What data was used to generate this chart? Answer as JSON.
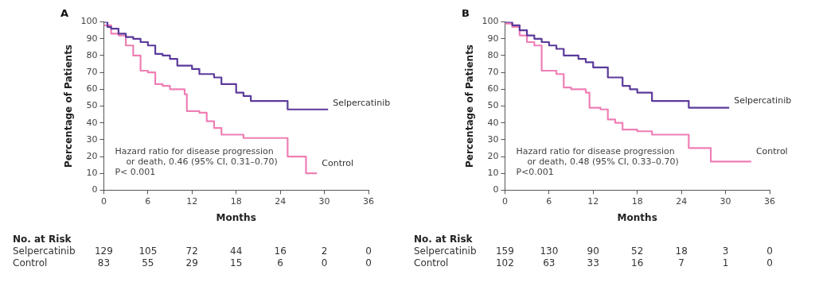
{
  "chart_data": [
    {
      "type": "step",
      "title": "A",
      "xlabel": "Months",
      "ylabel": "Percentage of Patients",
      "xlim": [
        0,
        36
      ],
      "xticks": [
        0,
        6,
        12,
        18,
        24,
        30,
        36
      ],
      "ylim": [
        0,
        100
      ],
      "yticks": [
        0,
        10,
        20,
        30,
        40,
        50,
        60,
        70,
        80,
        90,
        100
      ],
      "grid": false,
      "legend": false,
      "marker": "none",
      "line_style": "solid",
      "series": [
        {
          "name": "Selpercatinib",
          "color": "#5b3a9b",
          "x": [
            0,
            0.5,
            1,
            2,
            3,
            4,
            5,
            6,
            7,
            8,
            9,
            10,
            12,
            13,
            15,
            16,
            18,
            19,
            20,
            25,
            30.5
          ],
          "values": [
            100,
            97,
            96,
            93,
            91,
            90,
            88,
            86,
            81,
            80,
            78,
            74,
            72,
            69,
            67,
            63,
            58,
            56,
            53,
            48,
            48
          ]
        },
        {
          "name": "Control",
          "color": "#ef7fb5",
          "x": [
            0,
            1,
            2,
            3,
            4,
            5,
            6,
            7,
            8,
            9,
            11,
            11.3,
            13,
            14,
            15,
            16,
            19,
            25,
            27.5,
            29
          ],
          "values": [
            98,
            93,
            92,
            86,
            80,
            71,
            70,
            63,
            62,
            60,
            57,
            47,
            46,
            41,
            37,
            33,
            31,
            20,
            10,
            10
          ]
        }
      ],
      "annotations": [
        "Hazard ratio for disease progression\n    or death, 0.46 (95% CI, 0.31–0.70)\nP< 0.001",
        "No. at Risk",
        "Selpercatinib",
        "129",
        "105",
        "72",
        "44",
        "16",
        "2",
        "0",
        "Control",
        "83",
        "55",
        "29",
        "15",
        "6",
        "0",
        "0"
      ]
    },
    {
      "type": "step",
      "title": "B",
      "xlabel": "Months",
      "ylabel": "Percentage of Patients",
      "xlim": [
        0,
        36
      ],
      "xticks": [
        0,
        6,
        12,
        18,
        24,
        30,
        36
      ],
      "ylim": [
        0,
        100
      ],
      "yticks": [
        0,
        10,
        20,
        30,
        40,
        50,
        60,
        70,
        80,
        90,
        100
      ],
      "grid": false,
      "legend": false,
      "marker": "none",
      "line_style": "solid",
      "series": [
        {
          "name": "Selpercatinib",
          "color": "#5b3a9b",
          "x": [
            0,
            1,
            2,
            3,
            4,
            5,
            6,
            7,
            8,
            10,
            11,
            12,
            14,
            16,
            17,
            18,
            20,
            25,
            30.5
          ],
          "values": [
            100,
            98,
            95,
            92,
            90,
            88,
            86,
            84,
            80,
            78,
            76,
            73,
            67,
            62,
            60,
            58,
            53,
            49,
            49
          ]
        },
        {
          "name": "Control",
          "color": "#ef7fb5",
          "x": [
            0,
            1,
            2,
            3,
            4,
            5,
            7,
            8,
            9,
            11,
            11.5,
            13,
            14,
            15,
            16,
            18,
            20,
            25,
            28,
            33.5
          ],
          "values": [
            99,
            97,
            92,
            88,
            86,
            71,
            69,
            61,
            60,
            58,
            49,
            48,
            42,
            40,
            36,
            35,
            33,
            25,
            17,
            17
          ]
        }
      ],
      "annotations": [
        "Hazard ratio for disease progression\n    or death, 0.48 (95% CI, 0.33–0.70)\nP<0.001",
        "No. at Risk",
        "Selpercatinib",
        "159",
        "130",
        "90",
        "52",
        "18",
        "3",
        "0",
        "Control",
        "102",
        "63",
        "33",
        "16",
        "7",
        "1",
        "0"
      ]
    }
  ]
}
